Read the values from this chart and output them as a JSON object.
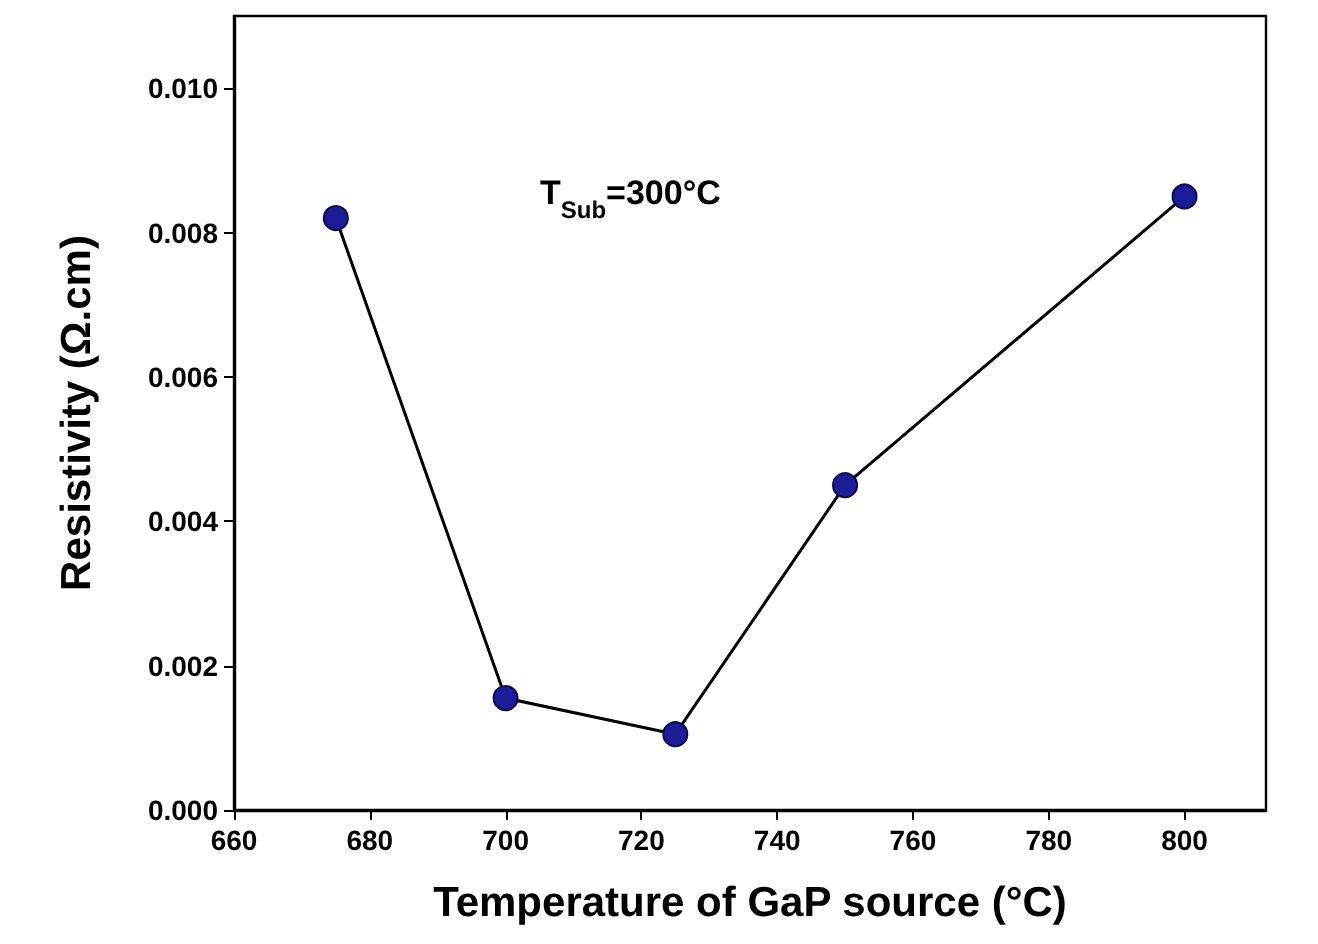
{
  "chart_data": {
    "type": "line",
    "xlabel": "Temperature of GaP source (°C)",
    "ylabel": "Resistivity (Ω.cm)",
    "annotations": [
      "T$_{Sub}$=300°C"
    ],
    "x": [
      675,
      700,
      725,
      750,
      800
    ],
    "series": [
      {
        "color": "#1c1c99",
        "values": [
          0.0082,
          0.00155,
          0.00105,
          0.0045,
          0.0085
        ]
      }
    ],
    "xlim": [
      660,
      812
    ],
    "xticks": [
      660,
      680,
      700,
      720,
      740,
      760,
      780,
      800
    ],
    "ylim": [
      0,
      0.011
    ],
    "yticks": [
      {
        "value": 0,
        "label": "0.000"
      },
      {
        "value": 0.002,
        "label": "0.002"
      },
      {
        "value": 0.004,
        "label": "0.004"
      },
      {
        "value": 0.006,
        "label": "0.006"
      },
      {
        "value": 0.008,
        "label": "0.008"
      },
      {
        "value": 0.01,
        "label": "0.010"
      }
    ],
    "grid": false,
    "marker": "circle",
    "line_style": "solid"
  }
}
